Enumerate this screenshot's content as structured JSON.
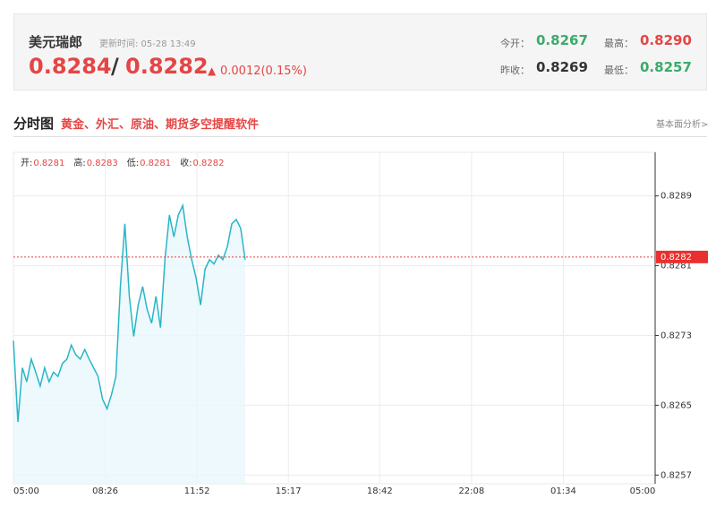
{
  "header": {
    "title": "美元瑞郎",
    "update": "更新时间: 05-28 13:49",
    "price": "0.8284",
    "separator": "/",
    "price2": "0.8282",
    "change": "0.0012(0.15%)",
    "stats": [
      {
        "label": "今开：",
        "value": "0.8267"
      },
      {
        "label": "最高：",
        "value": "0.8290"
      },
      {
        "label": "昨收：",
        "value": "0.8269"
      },
      {
        "label": "最低：",
        "value": "0.8257"
      }
    ]
  },
  "section": {
    "title": "分时图",
    "promo": "黄金、外汇、原油、期货多空提醒软件",
    "link": "基本面分析>"
  },
  "chart_data": {
    "type": "line",
    "ohlc": [
      {
        "label": "开:",
        "value": "0.8281"
      },
      {
        "label": "高:",
        "value": "0.8283"
      },
      {
        "label": "低:",
        "value": "0.8281"
      },
      {
        "label": "收:",
        "value": "0.8282"
      }
    ],
    "x": [
      "05:00",
      "05:10",
      "05:20",
      "05:30",
      "05:40",
      "05:50",
      "06:00",
      "06:10",
      "06:20",
      "06:30",
      "06:40",
      "06:50",
      "07:00",
      "07:10",
      "07:20",
      "07:30",
      "07:40",
      "07:50",
      "08:00",
      "08:10",
      "08:20",
      "08:30",
      "08:40",
      "08:50",
      "09:00",
      "09:10",
      "09:20",
      "09:30",
      "09:40",
      "09:50",
      "10:00",
      "10:10",
      "10:20",
      "10:30",
      "10:40",
      "10:50",
      "11:00",
      "11:10",
      "11:20",
      "11:30",
      "11:40",
      "11:50",
      "12:00",
      "12:10",
      "12:20",
      "12:30",
      "12:40",
      "12:50",
      "13:00",
      "13:10",
      "13:20",
      "13:30",
      "13:40"
    ],
    "series": [
      {
        "color": "#29b6c8",
        "values": [
          0.82724,
          0.82631,
          0.82693,
          0.82677,
          0.82703,
          0.82688,
          0.82672,
          0.82693,
          0.82677,
          0.82688,
          0.82683,
          0.82698,
          0.82703,
          0.82719,
          0.82708,
          0.82703,
          0.82714,
          0.82703,
          0.82693,
          0.82683,
          0.82657,
          0.82646,
          0.82662,
          0.82683,
          0.82786,
          0.82858,
          0.82775,
          0.82729,
          0.82765,
          0.82786,
          0.8276,
          0.82744,
          0.82775,
          0.82739,
          0.82817,
          0.82868,
          0.82843,
          0.82868,
          0.82879,
          0.82843,
          0.82817,
          0.82796,
          0.82765,
          0.82806,
          0.82817,
          0.82812,
          0.82822,
          0.82817,
          0.82832,
          0.82858,
          0.82863,
          0.82853,
          0.82817
        ]
      }
    ],
    "xticks": [
      "05:00",
      "08:26",
      "11:52",
      "15:17",
      "18:42",
      "22:08",
      "01:34",
      "05:00"
    ],
    "ylim": [
      0.8256,
      0.8294
    ],
    "yticks": [
      0.8257,
      0.8265,
      0.8273,
      0.8281,
      0.8289
    ],
    "reference_line": 0.8282,
    "grid": true
  }
}
